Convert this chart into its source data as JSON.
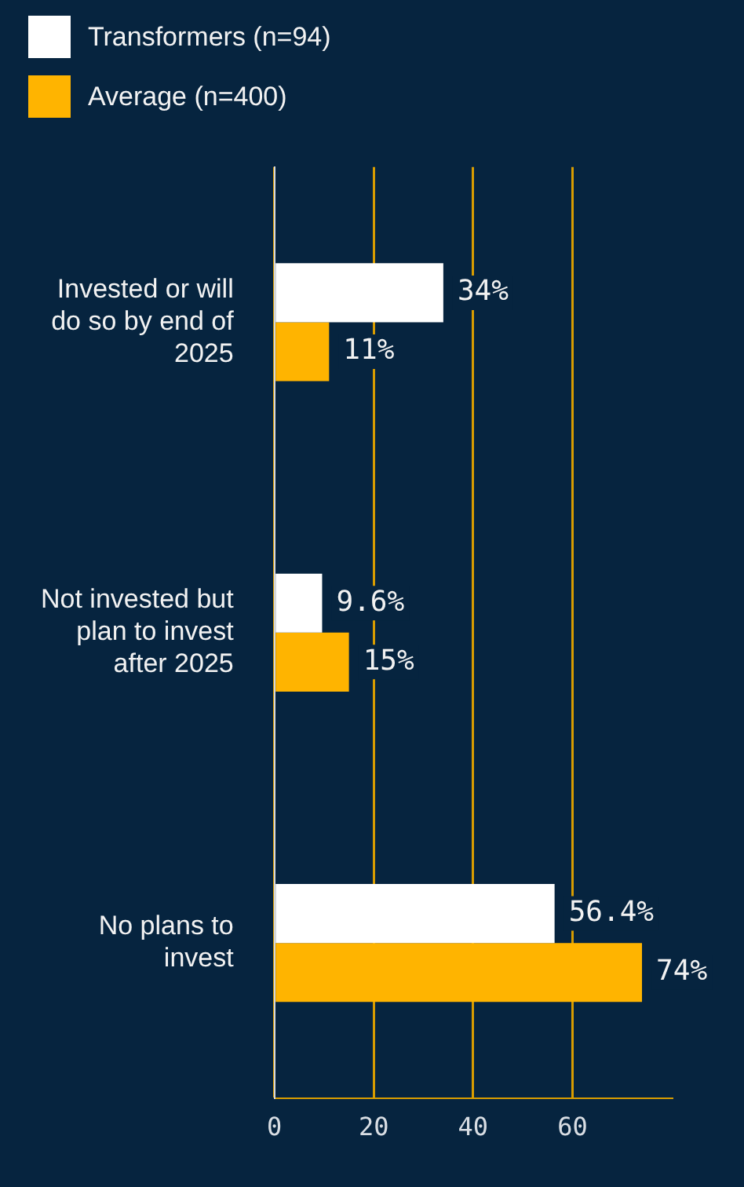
{
  "chart_data": {
    "type": "bar",
    "orientation": "horizontal",
    "categories": [
      "Invested or will do so by end of 2025",
      "Not invested but plan to invest after 2025",
      "No plans to invest"
    ],
    "series": [
      {
        "name": "Transformers (n=94)",
        "color": "#ffffff",
        "values": [
          34,
          9.6,
          56.4
        ],
        "value_labels": [
          "34%",
          "9.6%",
          "56.4%"
        ]
      },
      {
        "name": "Average (n=400)",
        "color": "#ffb400",
        "values": [
          11,
          15,
          74
        ],
        "value_labels": [
          "11%",
          "15%",
          "74%"
        ]
      }
    ],
    "xlim": [
      0,
      80
    ],
    "xticks": [
      0,
      20,
      40,
      60
    ],
    "grid": "x",
    "legend": "top left"
  }
}
